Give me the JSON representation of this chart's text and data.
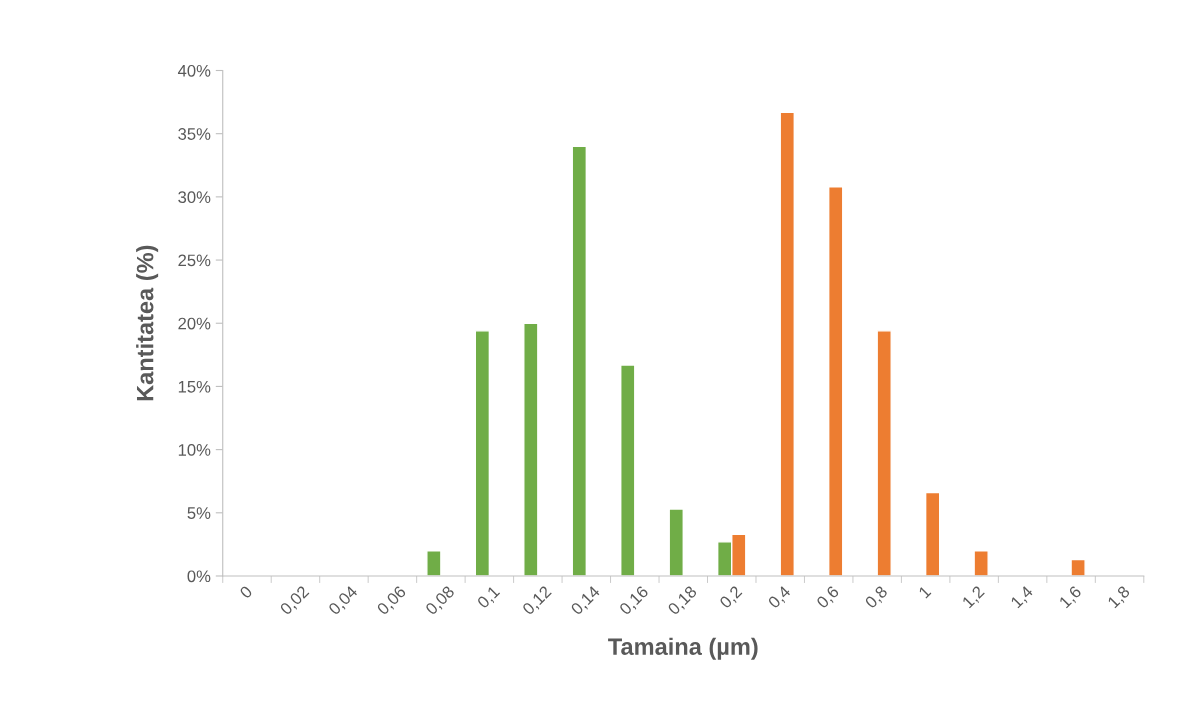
{
  "chart_data": {
    "type": "bar",
    "xlabel": "Tamaina (µm)",
    "ylabel": "Kantitatea (%)",
    "categories": [
      "0",
      "0,02",
      "0,04",
      "0,06",
      "0,08",
      "0,1",
      "0,12",
      "0,14",
      "0,16",
      "0,18",
      "0,2",
      "0,4",
      "0,6",
      "0,8",
      "1",
      "1,2",
      "1,4",
      "1,6",
      "1,8"
    ],
    "series": [
      {
        "color": "#70ad47",
        "values": [
          null,
          null,
          null,
          null,
          2.0,
          19.4,
          20.0,
          34.0,
          16.7,
          5.3,
          2.7,
          null,
          null,
          null,
          null,
          null,
          null,
          null,
          null
        ]
      },
      {
        "color": "#ed7d31",
        "values": [
          null,
          null,
          null,
          null,
          null,
          null,
          null,
          null,
          null,
          null,
          3.3,
          36.7,
          30.8,
          19.4,
          6.6,
          2.0,
          null,
          1.3,
          null
        ]
      }
    ],
    "ylim": [
      0,
      40
    ],
    "yticks": [
      {
        "value": 0,
        "label": "0%"
      },
      {
        "value": 5,
        "label": "5%"
      },
      {
        "value": 10,
        "label": "10%"
      },
      {
        "value": 15,
        "label": "15%"
      },
      {
        "value": 20,
        "label": "20%"
      },
      {
        "value": 25,
        "label": "25%"
      },
      {
        "value": 30,
        "label": "30%"
      },
      {
        "value": 35,
        "label": "35%"
      },
      {
        "value": 40,
        "label": "40%"
      }
    ],
    "grid": false
  }
}
